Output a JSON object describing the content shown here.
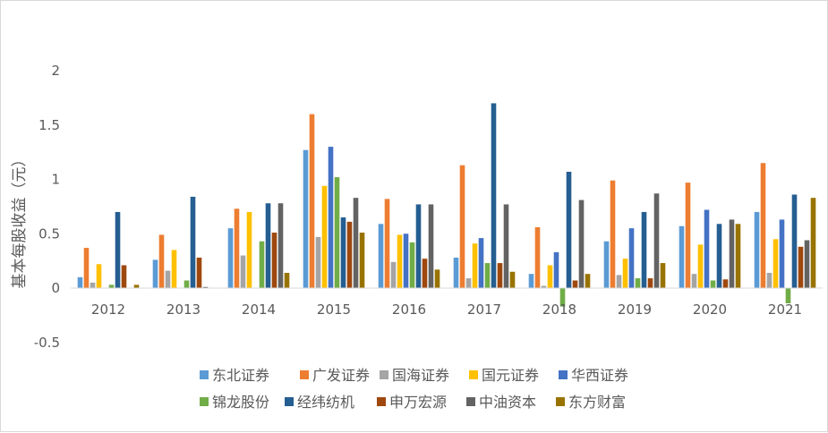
{
  "chart_data": {
    "type": "bar",
    "title": "",
    "xlabel": "",
    "ylabel": "基本每股收益（元）",
    "ylim": [
      -0.5,
      2
    ],
    "yticks": [
      -0.5,
      0,
      0.5,
      1,
      1.5,
      2
    ],
    "ytick_labels": [
      "-0.5",
      "0",
      "0.5",
      "1",
      "1.5",
      "2"
    ],
    "grid": false,
    "legend_position": "bottom",
    "categories": [
      "2012",
      "2013",
      "2014",
      "2015",
      "2016",
      "2017",
      "2018",
      "2019",
      "2020",
      "2021"
    ],
    "series": [
      {
        "name": "东北证券",
        "color": "#5B9BD5",
        "values": [
          0.1,
          0.26,
          0.55,
          1.27,
          0.59,
          0.28,
          0.13,
          0.43,
          0.57,
          0.7
        ]
      },
      {
        "name": "广发证券",
        "color": "#ED7D31",
        "values": [
          0.37,
          0.49,
          0.73,
          1.6,
          0.82,
          1.13,
          0.56,
          0.99,
          0.97,
          1.15
        ]
      },
      {
        "name": "国海证券",
        "color": "#A5A5A5",
        "values": [
          0.05,
          0.16,
          0.3,
          0.47,
          0.24,
          0.09,
          0.02,
          0.12,
          0.13,
          0.14
        ]
      },
      {
        "name": "国元证券",
        "color": "#FFC000",
        "values": [
          0.22,
          0.35,
          0.7,
          0.94,
          0.49,
          0.41,
          0.21,
          0.27,
          0.4,
          0.45
        ]
      },
      {
        "name": "华西证券",
        "color": "#4472C4",
        "values": [
          0.0,
          0.0,
          0.0,
          1.3,
          0.5,
          0.46,
          0.33,
          0.55,
          0.72,
          0.63
        ]
      },
      {
        "name": "锦龙股份",
        "color": "#70AD47",
        "values": [
          0.03,
          0.07,
          0.43,
          1.02,
          0.42,
          0.23,
          -0.17,
          0.09,
          0.07,
          -0.14
        ]
      },
      {
        "name": "经纬纺机",
        "color": "#255E91",
        "values": [
          0.7,
          0.84,
          0.78,
          0.65,
          0.77,
          1.7,
          1.07,
          0.7,
          0.59,
          0.86
        ]
      },
      {
        "name": "申万宏源",
        "color": "#9E480E",
        "values": [
          0.21,
          0.28,
          0.51,
          0.61,
          0.27,
          0.23,
          0.07,
          0.09,
          0.08,
          0.38
        ]
      },
      {
        "name": "中油资本",
        "color": "#636363",
        "values": [
          0.0,
          0.01,
          0.78,
          0.83,
          0.77,
          0.77,
          0.81,
          0.87,
          0.63,
          0.44
        ]
      },
      {
        "name": "东方财富",
        "color": "#997300",
        "values": [
          0.03,
          0.0,
          0.14,
          0.51,
          0.17,
          0.15,
          0.13,
          0.23,
          0.59,
          0.83
        ]
      }
    ]
  }
}
